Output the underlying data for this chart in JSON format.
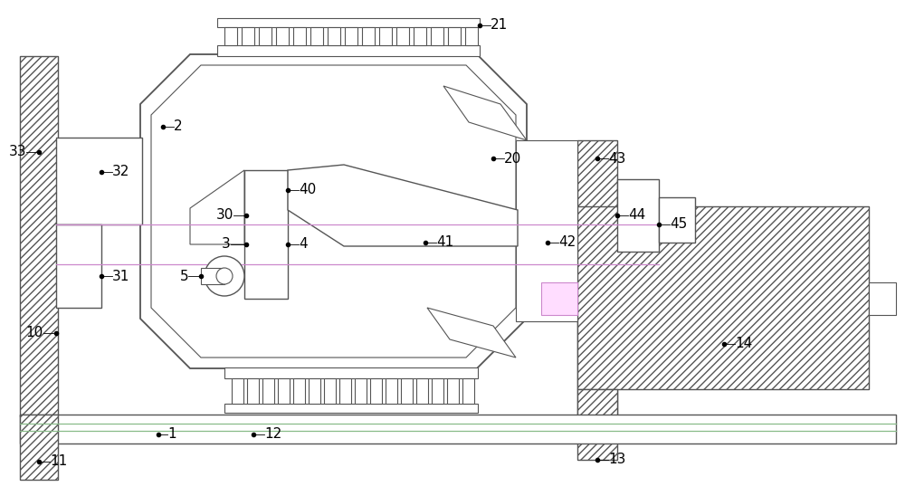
{
  "bg_color": "#ffffff",
  "line_color": "#555555",
  "label_color": "#000000",
  "purple_line": "#cc88cc",
  "green_line": "#88bb88",
  "fig_width": 10.0,
  "fig_height": 5.48,
  "dpi": 100
}
